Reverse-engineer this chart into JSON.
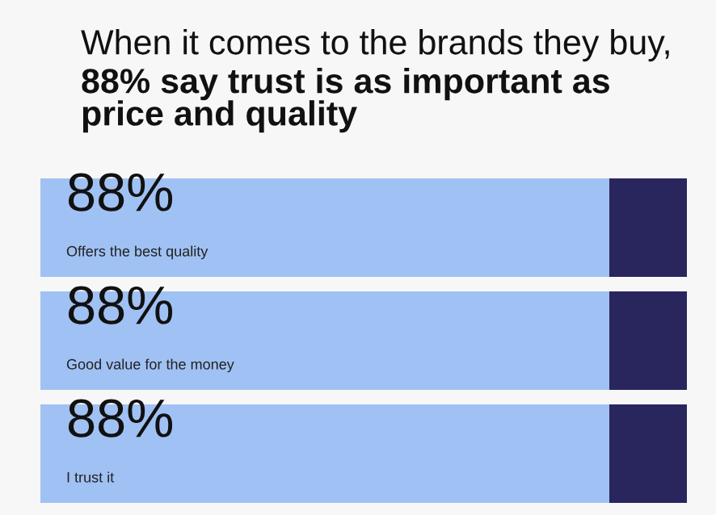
{
  "chart_data": {
    "type": "bar",
    "orientation": "horizontal",
    "stacked": true,
    "title": "When it comes to the brands they buy,",
    "subtitle": "88% say trust is as important as\nprice and quality",
    "categories": [
      "Offers the best quality",
      "Good value for the money",
      "I trust it"
    ],
    "series": [
      {
        "color": "#a0c1f3",
        "values": [
          88,
          88,
          88
        ],
        "value_labels": [
          "88%",
          "88%",
          "88%"
        ]
      },
      {
        "color": "#29265e",
        "values": [
          12,
          12,
          12
        ]
      }
    ],
    "xlim": [
      0,
      100
    ]
  }
}
